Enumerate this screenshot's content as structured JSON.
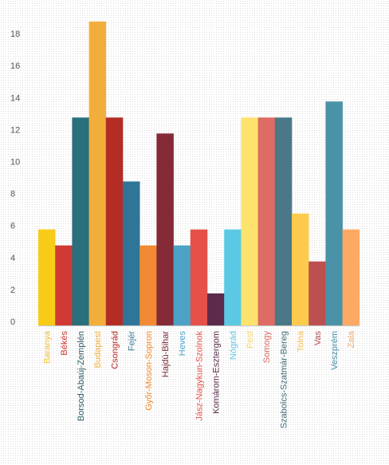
{
  "chart_data": {
    "type": "bar",
    "title": "",
    "xlabel": "",
    "ylabel": "",
    "ylim": [
      0,
      19
    ],
    "yticks": [
      0,
      2,
      4,
      6,
      8,
      10,
      12,
      14,
      16,
      18
    ],
    "grid": false,
    "legend": "none",
    "categories": [
      "Baranya",
      "Békés",
      "Borsod-Abaúj-Zemplén",
      "Budapest",
      "Csongrád",
      "Fejér",
      "Győr-Moson-Sopron",
      "Hajdú-Bihar",
      "Heves",
      "Jász-Nagykun-Szolnok",
      "Komárom-Esztergom",
      "Nógrád",
      "Pest",
      "Somogy",
      "Szabolcs-Szatmár-Bereg",
      "Tolna",
      "Vas",
      "Veszprém",
      "Zala"
    ],
    "values": [
      6,
      5,
      13,
      19,
      13,
      9,
      5,
      12,
      5,
      6,
      2,
      6,
      13,
      13,
      13,
      7,
      4,
      14,
      6
    ],
    "colors": [
      "#F7CB16",
      "#D03A35",
      "#2A6F7C",
      "#F2AE3B",
      "#B32D24",
      "#2E7597",
      "#F28A34",
      "#842B37",
      "#4CA2C5",
      "#E55149",
      "#5D2A4C",
      "#5BC9E4",
      "#FDE36E",
      "#DE6B64",
      "#4A7886",
      "#FCCB4E",
      "#BC5050",
      "#4A92A7",
      "#FCA964"
    ],
    "label_colors": [
      "#F2C132",
      "#C8362F",
      "#2D5F69",
      "#F2B040",
      "#B42B24",
      "#3E7C9A",
      "#F08A30",
      "#7A2A33",
      "#4FA3C6",
      "#E25349",
      "#5A2A48",
      "#5CC9E4",
      "#F5D764",
      "#DE6B64",
      "#3F6A78",
      "#FAC24B",
      "#B84A4A",
      "#4A92A7",
      "#FBA865"
    ]
  }
}
